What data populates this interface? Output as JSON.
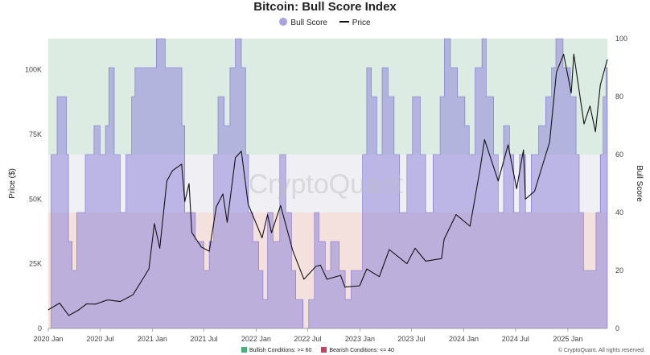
{
  "chart_data": {
    "type": "area",
    "title": "Bitcoin: Bull Score Index",
    "legend": {
      "placement": "top-center",
      "series": [
        {
          "label": "Bull Score",
          "color": "#a9a2e6"
        },
        {
          "label": "Price",
          "color": "#111111"
        }
      ]
    },
    "zones_legend": [
      {
        "label": "Bullish Conditions: >= 60",
        "color": "#49b07d",
        "range": [
          60,
          100
        ]
      },
      {
        "label": "Bearish Conditions: <= 40",
        "color": "#cc3d5e",
        "range": [
          0,
          40
        ]
      }
    ],
    "credit": "© CryptoQuant. All rights reserved.",
    "watermark": "CryptoQuant",
    "x_axis": {
      "ticks": [
        "2020 Jan",
        "2020 Jul",
        "2021 Jan",
        "2021 Jul",
        "2022 Jan",
        "2022 Jul",
        "2023 Jan",
        "2023 Jul",
        "2024 Jan",
        "2024 Jul",
        "2025 Jan"
      ]
    },
    "y_left": {
      "label": "Price ($)",
      "range": [
        0,
        112000
      ],
      "ticks": [
        {
          "value": 0,
          "label": "0"
        },
        {
          "value": 25000,
          "label": "25K"
        },
        {
          "value": 50000,
          "label": "50K"
        },
        {
          "value": 75000,
          "label": "75K"
        },
        {
          "value": 100000,
          "label": "100K"
        }
      ]
    },
    "y_right": {
      "label": "Bull Score",
      "range": [
        0,
        100
      ],
      "ticks": [
        {
          "value": 0,
          "label": "0"
        },
        {
          "value": 20,
          "label": "20"
        },
        {
          "value": 40,
          "label": "40"
        },
        {
          "value": 60,
          "label": "60"
        },
        {
          "value": 80,
          "label": "80"
        },
        {
          "value": 100,
          "label": "100"
        }
      ]
    },
    "x_range": [
      "2020-01-01",
      "2025-05-20"
    ],
    "bull_score": {
      "name": "Bull Score",
      "points": [
        [
          "2020-01-01",
          0
        ],
        [
          "2020-01-10",
          0
        ],
        [
          "2020-01-11",
          60
        ],
        [
          "2020-02-01",
          80
        ],
        [
          "2020-02-15",
          80
        ],
        [
          "2020-03-05",
          60
        ],
        [
          "2020-03-12",
          30
        ],
        [
          "2020-03-25",
          20
        ],
        [
          "2020-04-10",
          40
        ],
        [
          "2020-04-30",
          40
        ],
        [
          "2020-05-10",
          60
        ],
        [
          "2020-06-10",
          70
        ],
        [
          "2020-07-01",
          60
        ],
        [
          "2020-07-20",
          70
        ],
        [
          "2020-08-01",
          90
        ],
        [
          "2020-08-20",
          60
        ],
        [
          "2020-09-10",
          40
        ],
        [
          "2020-09-30",
          60
        ],
        [
          "2020-10-20",
          80
        ],
        [
          "2020-11-01",
          90
        ],
        [
          "2020-11-20",
          90
        ],
        [
          "2020-12-10",
          90
        ],
        [
          "2020-12-31",
          90
        ],
        [
          "2021-01-15",
          100
        ],
        [
          "2021-02-15",
          90
        ],
        [
          "2021-03-20",
          90
        ],
        [
          "2021-04-15",
          70
        ],
        [
          "2021-04-25",
          40
        ],
        [
          "2021-05-15",
          40
        ],
        [
          "2021-06-01",
          30
        ],
        [
          "2021-07-01",
          20
        ],
        [
          "2021-07-20",
          30
        ],
        [
          "2021-08-05",
          60
        ],
        [
          "2021-08-20",
          80
        ],
        [
          "2021-09-10",
          70
        ],
        [
          "2021-10-01",
          90
        ],
        [
          "2021-10-20",
          100
        ],
        [
          "2021-11-10",
          90
        ],
        [
          "2021-11-25",
          60
        ],
        [
          "2021-12-05",
          40
        ],
        [
          "2021-12-20",
          30
        ],
        [
          "2022-01-10",
          20
        ],
        [
          "2022-01-25",
          10
        ],
        [
          "2022-02-10",
          40
        ],
        [
          "2022-03-01",
          30
        ],
        [
          "2022-03-25",
          60
        ],
        [
          "2022-04-15",
          40
        ],
        [
          "2022-05-05",
          20
        ],
        [
          "2022-05-20",
          10
        ],
        [
          "2022-06-15",
          0
        ],
        [
          "2022-07-05",
          10
        ],
        [
          "2022-07-25",
          40
        ],
        [
          "2022-08-10",
          30
        ],
        [
          "2022-09-01",
          20
        ],
        [
          "2022-09-20",
          30
        ],
        [
          "2022-10-20",
          20
        ],
        [
          "2022-11-10",
          10
        ],
        [
          "2022-12-01",
          20
        ],
        [
          "2022-12-20",
          20
        ],
        [
          "2023-01-10",
          60
        ],
        [
          "2023-01-25",
          90
        ],
        [
          "2023-02-10",
          80
        ],
        [
          "2023-03-01",
          60
        ],
        [
          "2023-03-20",
          90
        ],
        [
          "2023-04-10",
          80
        ],
        [
          "2023-05-01",
          60
        ],
        [
          "2023-05-20",
          40
        ],
        [
          "2023-06-15",
          60
        ],
        [
          "2023-07-05",
          80
        ],
        [
          "2023-08-01",
          60
        ],
        [
          "2023-08-20",
          40
        ],
        [
          "2023-09-15",
          60
        ],
        [
          "2023-10-10",
          80
        ],
        [
          "2023-10-25",
          100
        ],
        [
          "2023-11-15",
          90
        ],
        [
          "2023-12-10",
          80
        ],
        [
          "2024-01-05",
          70
        ],
        [
          "2024-01-20",
          60
        ],
        [
          "2024-02-10",
          90
        ],
        [
          "2024-03-05",
          100
        ],
        [
          "2024-03-20",
          80
        ],
        [
          "2024-04-15",
          60
        ],
        [
          "2024-05-01",
          40
        ],
        [
          "2024-05-20",
          70
        ],
        [
          "2024-06-10",
          60
        ],
        [
          "2024-06-25",
          40
        ],
        [
          "2024-07-15",
          60
        ],
        [
          "2024-08-05",
          40
        ],
        [
          "2024-08-25",
          60
        ],
        [
          "2024-09-20",
          70
        ],
        [
          "2024-10-15",
          80
        ],
        [
          "2024-11-05",
          90
        ],
        [
          "2024-11-20",
          100
        ],
        [
          "2024-12-15",
          90
        ],
        [
          "2025-01-10",
          80
        ],
        [
          "2025-01-30",
          60
        ],
        [
          "2025-02-10",
          40
        ],
        [
          "2025-02-25",
          20
        ],
        [
          "2025-03-20",
          20
        ],
        [
          "2025-04-10",
          40
        ],
        [
          "2025-04-25",
          60
        ],
        [
          "2025-05-05",
          80
        ],
        [
          "2025-05-15",
          90
        ],
        [
          "2025-05-20",
          90
        ]
      ]
    },
    "price": {
      "name": "Price",
      "points": [
        [
          "2020-01-01",
          7200
        ],
        [
          "2020-02-10",
          9800
        ],
        [
          "2020-03-13",
          5000
        ],
        [
          "2020-04-15",
          7000
        ],
        [
          "2020-05-15",
          9500
        ],
        [
          "2020-06-15",
          9400
        ],
        [
          "2020-07-27",
          11000
        ],
        [
          "2020-09-10",
          10400
        ],
        [
          "2020-10-25",
          13000
        ],
        [
          "2020-11-25",
          18500
        ],
        [
          "2020-12-20",
          23000
        ],
        [
          "2021-01-08",
          40500
        ],
        [
          "2021-01-27",
          31000
        ],
        [
          "2021-02-21",
          57000
        ],
        [
          "2021-03-13",
          61000
        ],
        [
          "2021-04-14",
          63500
        ],
        [
          "2021-04-25",
          49000
        ],
        [
          "2021-05-10",
          56000
        ],
        [
          "2021-05-20",
          37000
        ],
        [
          "2021-06-22",
          31500
        ],
        [
          "2021-07-20",
          29800
        ],
        [
          "2021-08-14",
          47000
        ],
        [
          "2021-09-06",
          52000
        ],
        [
          "2021-09-21",
          41000
        ],
        [
          "2021-10-20",
          66000
        ],
        [
          "2021-11-10",
          68500
        ],
        [
          "2021-12-04",
          48000
        ],
        [
          "2022-01-22",
          35000
        ],
        [
          "2022-02-10",
          44000
        ],
        [
          "2022-02-24",
          37000
        ],
        [
          "2022-03-28",
          47500
        ],
        [
          "2022-05-10",
          30000
        ],
        [
          "2022-06-18",
          19000
        ],
        [
          "2022-07-30",
          24000
        ],
        [
          "2022-08-15",
          24500
        ],
        [
          "2022-09-07",
          19000
        ],
        [
          "2022-10-25",
          20500
        ],
        [
          "2022-11-09",
          16000
        ],
        [
          "2022-12-31",
          16500
        ],
        [
          "2023-01-25",
          23000
        ],
        [
          "2023-03-10",
          20000
        ],
        [
          "2023-04-14",
          30500
        ],
        [
          "2023-06-15",
          25000
        ],
        [
          "2023-07-14",
          31000
        ],
        [
          "2023-08-20",
          26000
        ],
        [
          "2023-10-15",
          27000
        ],
        [
          "2023-10-24",
          34500
        ],
        [
          "2023-12-05",
          44000
        ],
        [
          "2024-01-23",
          39500
        ],
        [
          "2024-02-28",
          62000
        ],
        [
          "2024-03-14",
          73000
        ],
        [
          "2024-05-01",
          57000
        ],
        [
          "2024-06-05",
          71000
        ],
        [
          "2024-07-05",
          54000
        ],
        [
          "2024-07-29",
          69000
        ],
        [
          "2024-08-05",
          50000
        ],
        [
          "2024-09-06",
          53000
        ],
        [
          "2024-10-29",
          72000
        ],
        [
          "2024-11-22",
          99000
        ],
        [
          "2024-12-17",
          106000
        ],
        [
          "2025-01-13",
          91000
        ],
        [
          "2025-01-22",
          106000
        ],
        [
          "2025-02-27",
          79000
        ],
        [
          "2025-03-20",
          86000
        ],
        [
          "2025-04-08",
          76000
        ],
        [
          "2025-04-25",
          94000
        ],
        [
          "2025-05-20",
          104000
        ]
      ]
    }
  }
}
